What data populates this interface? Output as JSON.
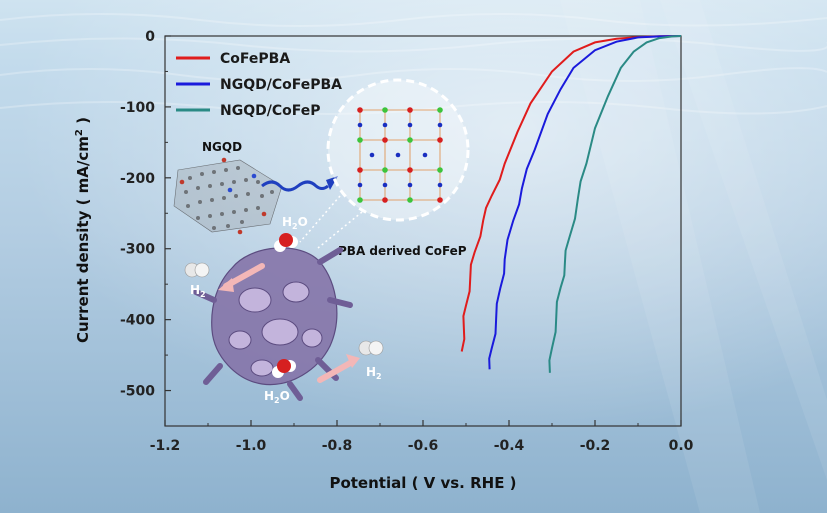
{
  "chart_data": {
    "type": "line",
    "xlabel": "Potential ( V vs. RHE )",
    "ylabel": "Current density ( mA/cm",
    "ylabel_sup": "2",
    "ylabel_close": " )",
    "xlim": [
      -1.2,
      0.0
    ],
    "ylim": [
      -550,
      0
    ],
    "x_ticks": [
      "-1.2",
      "-1.0",
      "-0.8",
      "-0.6",
      "-0.4",
      "-0.2",
      "0.0"
    ],
    "x_tick_values": [
      -1.2,
      -1.0,
      -0.8,
      -0.6,
      -0.4,
      -0.2,
      0.0
    ],
    "y_ticks": [
      "0",
      "-100",
      "-200",
      "-300",
      "-400",
      "-500"
    ],
    "y_tick_values": [
      0,
      -100,
      -200,
      -300,
      -400,
      -500
    ],
    "grid": false,
    "legend_position": "top-left",
    "series": [
      {
        "name": "CoFePBA",
        "color": "#e01c1c",
        "points": [
          [
            0.0,
            0
          ],
          [
            -0.05,
            -0.4
          ],
          [
            -0.1,
            -1.5
          ],
          [
            -0.15,
            -4
          ],
          [
            -0.2,
            -9
          ],
          [
            -0.25,
            -22
          ],
          [
            -0.3,
            -50
          ],
          [
            -0.35,
            -95
          ],
          [
            -0.38,
            -135
          ],
          [
            -0.41,
            -180
          ],
          [
            -0.44,
            -225
          ],
          [
            -0.46,
            -260
          ],
          [
            -0.48,
            -305
          ],
          [
            -0.49,
            -340
          ],
          [
            -0.5,
            -380
          ],
          [
            -0.505,
            -410
          ],
          [
            -0.51,
            -445
          ]
        ]
      },
      {
        "name": "NGQD/CoFePBA",
        "color": "#1a1adc",
        "points": [
          [
            0.0,
            0
          ],
          [
            -0.05,
            -0.5
          ],
          [
            -0.1,
            -2
          ],
          [
            -0.15,
            -8
          ],
          [
            -0.2,
            -20
          ],
          [
            -0.25,
            -45
          ],
          [
            -0.28,
            -75
          ],
          [
            -0.31,
            -110
          ],
          [
            -0.34,
            -160
          ],
          [
            -0.37,
            -215
          ],
          [
            -0.39,
            -260
          ],
          [
            -0.41,
            -315
          ],
          [
            -0.42,
            -355
          ],
          [
            -0.43,
            -400
          ],
          [
            -0.44,
            -440
          ],
          [
            -0.445,
            -470
          ]
        ]
      },
      {
        "name": "NGQD/CoFeP",
        "color": "#2a8a85",
        "points": [
          [
            0.0,
            0
          ],
          [
            -0.02,
            -0.5
          ],
          [
            -0.05,
            -3
          ],
          [
            -0.08,
            -9
          ],
          [
            -0.11,
            -22
          ],
          [
            -0.14,
            -45
          ],
          [
            -0.17,
            -85
          ],
          [
            -0.2,
            -130
          ],
          [
            -0.22,
            -180
          ],
          [
            -0.24,
            -230
          ],
          [
            -0.26,
            -285
          ],
          [
            -0.27,
            -320
          ],
          [
            -0.28,
            -355
          ],
          [
            -0.29,
            -395
          ],
          [
            -0.3,
            -440
          ],
          [
            -0.305,
            -475
          ]
        ]
      }
    ]
  },
  "inset": {
    "ngqd_label": "NGQD",
    "pba_label": "PBA derived CoFeP",
    "h2o": "H",
    "h2o_sub": "2",
    "h2o_tail": "O",
    "h2": "H",
    "h2_sub": "2"
  }
}
